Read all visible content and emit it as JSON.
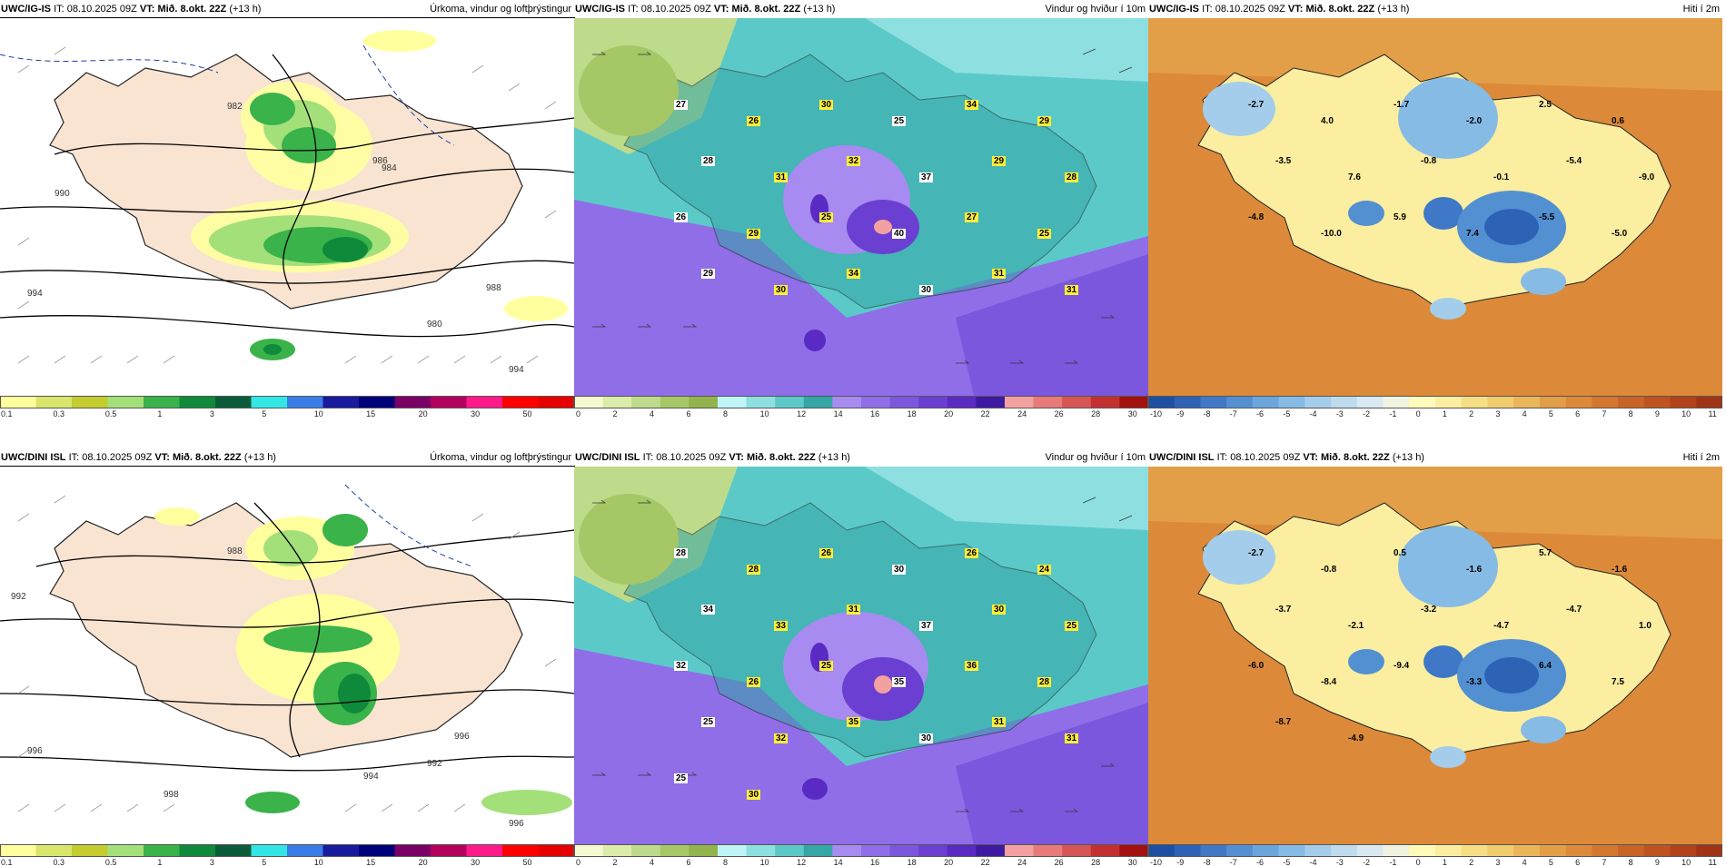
{
  "rows": [
    {
      "model": "UWC/IG-IS",
      "it_label": "IT:",
      "it_value": "08.10.2025 09Z",
      "vt_label": "VT:",
      "vt_value": "Mið. 8.okt. 22Z",
      "lead": "(+13 h)"
    },
    {
      "model": "UWC/DINI ISL",
      "it_label": "IT:",
      "it_value": "08.10.2025 09Z",
      "vt_label": "VT:",
      "vt_value": "Mið. 8.okt. 22Z",
      "lead": "(+13 h)"
    }
  ],
  "panels": {
    "precip_title": "Úrkoma, vindur og loftþrýstingur",
    "wind_title": "Vindur og hviður í 10m",
    "temp_title": "Hiti í 2m"
  },
  "colorbars": {
    "precip": {
      "labels": [
        "0.1",
        "0.3",
        "0.5",
        "1",
        "3",
        "5",
        "10",
        "15",
        "20",
        "30",
        "50"
      ],
      "colors": [
        "#ffff9e",
        "#d9e66b",
        "#c4cc2e",
        "#a3e07a",
        "#39b34a",
        "#0f8a3a",
        "#0b5c3a",
        "#33e6e6",
        "#3b7de8",
        "#1a1a9e",
        "#00007a",
        "#7a0066",
        "#b3005c",
        "#ff1a8c",
        "#ff0000",
        "#e60000"
      ]
    },
    "wind": {
      "labels": [
        "0",
        "2",
        "4",
        "6",
        "8",
        "10",
        "12",
        "14",
        "16",
        "18",
        "20",
        "22",
        "24",
        "26",
        "28",
        "30"
      ],
      "colors": [
        "#f7f9d0",
        "#dcecaa",
        "#bddb8a",
        "#a6c766",
        "#93b34c",
        "#bff5f5",
        "#8ee0e0",
        "#5cc9c9",
        "#34a6a6",
        "#a78bf0",
        "#8f6ee8",
        "#7b57de",
        "#6a3fd1",
        "#5a2ac4",
        "#3e1aa3",
        "#f3a0a0",
        "#e87a7a",
        "#d65656",
        "#c23030",
        "#a31010"
      ]
    },
    "temp": {
      "labels": [
        "-10",
        "-9",
        "-8",
        "-7",
        "-6",
        "-5",
        "-4",
        "-3",
        "-2",
        "-1",
        "0",
        "1",
        "2",
        "3",
        "4",
        "5",
        "6",
        "7",
        "8",
        "9",
        "10",
        "11"
      ],
      "colors": [
        "#1f4fa3",
        "#2e62b5",
        "#3f78c6",
        "#5290d2",
        "#6aa6dc",
        "#86bbe5",
        "#a3cdeb",
        "#bfdcef",
        "#d8e9f1",
        "#f0f3e0",
        "#fffbb8",
        "#fbeea0",
        "#f6de85",
        "#f0cc6d",
        "#eab659",
        "#e39f47",
        "#dc8a3a",
        "#d3772f",
        "#c96427",
        "#be5320",
        "#b2421a",
        "#a03314"
      ]
    }
  },
  "map_labels": {
    "top_precip": [
      "990",
      "994",
      "982",
      "986",
      "984",
      "988",
      "980",
      "994"
    ],
    "bottom_precip": [
      "992",
      "988",
      "996",
      "996",
      "992",
      "998",
      "996",
      "994"
    ],
    "top_wind_gusts": [
      "27",
      "26",
      "30",
      "25",
      "34",
      "29",
      "28",
      "31",
      "32",
      "37",
      "29",
      "28",
      "26",
      "29",
      "25",
      "40",
      "27",
      "25",
      "29",
      "30",
      "34",
      "30",
      "31",
      "31"
    ],
    "bottom_wind_gusts": [
      "28",
      "28",
      "26",
      "30",
      "26",
      "24",
      "34",
      "33",
      "31",
      "37",
      "30",
      "25",
      "32",
      "26",
      "25",
      "35",
      "36",
      "28",
      "25",
      "32",
      "35",
      "30",
      "31",
      "31",
      "25",
      "30"
    ],
    "top_temp": [
      "-2.7",
      "4.0",
      "-1.7",
      "-2.0",
      "2.5",
      "0.6",
      "-3.5",
      "7.6",
      "-0.8",
      "-0.1",
      "-5.4",
      "-9.0",
      "-4.8",
      "-10.0",
      "5.9",
      "7.4",
      "-5.5",
      "-5.0"
    ],
    "bottom_temp": [
      "-2.7",
      "-0.8",
      "0.5",
      "-1.6",
      "5.7",
      "-1.6",
      "-3.7",
      "-2.1",
      "-3.2",
      "-4.7",
      "-4.7",
      "1.0",
      "-6.0",
      "-8.4",
      "-9.4",
      "-3.3",
      "6.4",
      "7.5",
      "-8.7",
      "-4.9"
    ]
  }
}
